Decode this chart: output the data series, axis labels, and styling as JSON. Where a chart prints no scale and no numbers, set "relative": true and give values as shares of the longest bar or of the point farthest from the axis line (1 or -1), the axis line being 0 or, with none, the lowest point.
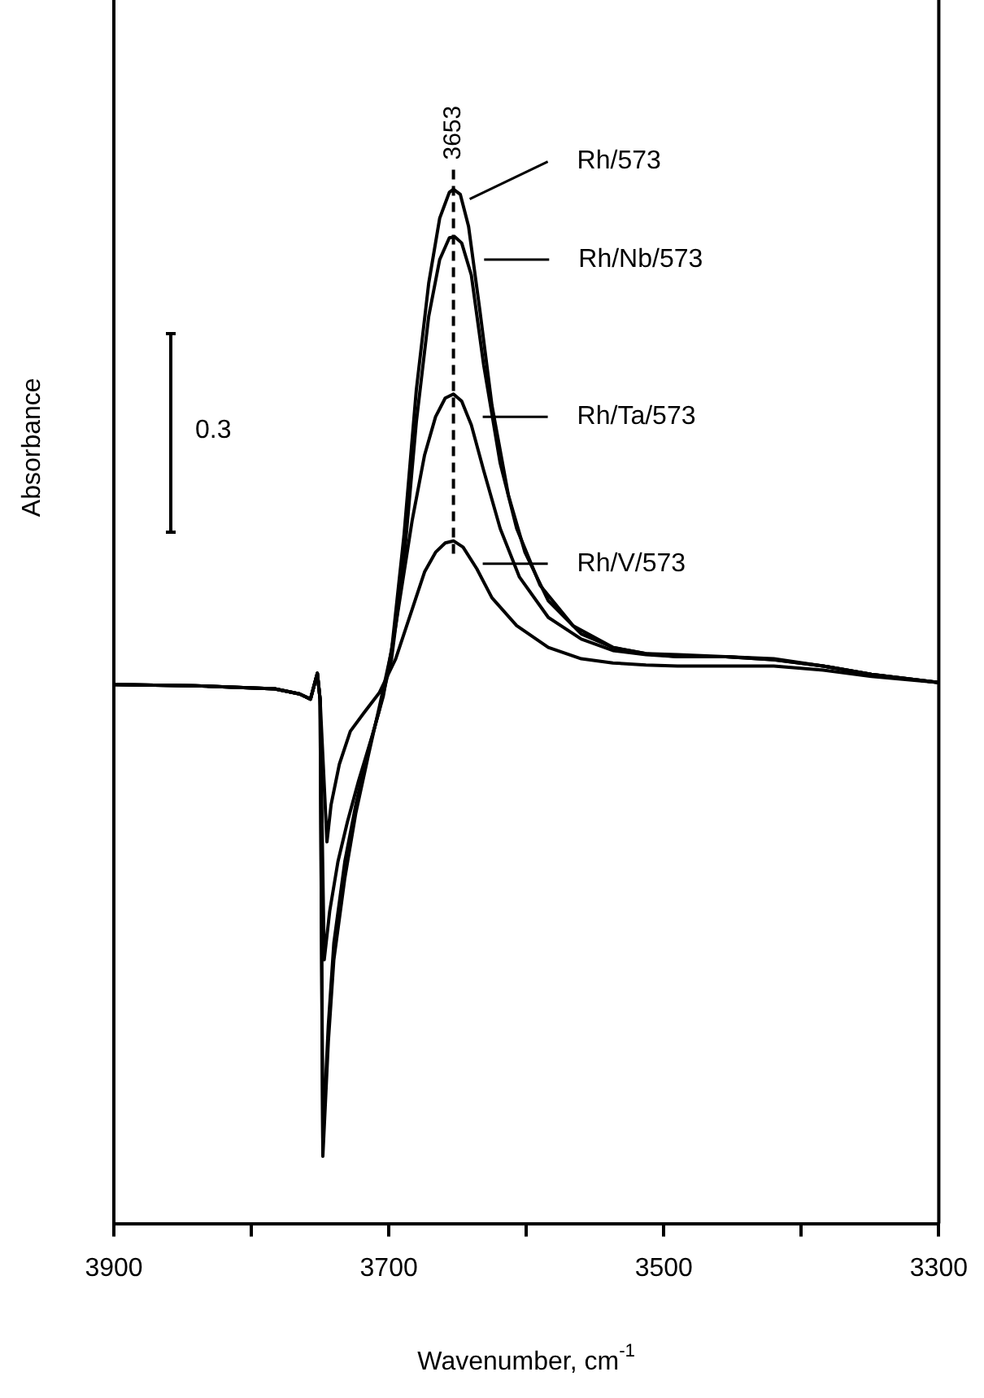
{
  "chart_data": {
    "type": "line",
    "relative": true,
    "xlabel": "Wavenumber, cm$^{-1}$",
    "ylabel": "Absorbance",
    "xlim": [
      3900,
      3300
    ],
    "xticks": [
      3900,
      {
        "value": 3800,
        "label": null
      },
      3700,
      {
        "value": 3600,
        "label": null
      },
      3500,
      {
        "value": 3400,
        "label": null
      },
      3300
    ],
    "tick_labels": "x",
    "grid": false,
    "legend": "right",
    "marker": "none",
    "line_style": "solid",
    "ref_lines": [
      {
        "axis": "x",
        "value": 3653,
        "label": "3653",
        "line_style": "dashed",
        "color": "#000000"
      }
    ],
    "annotations": [
      "0.3"
    ],
    "series": [
      {
        "name": "Rh/573",
        "color": "#000000",
        "x": [
          3900,
          3841,
          3783,
          3765,
          3757,
          3752,
          3750,
          3748,
          3744,
          3740,
          3732,
          3724,
          3715,
          3707,
          3698,
          3689,
          3680,
          3671,
          3663,
          3656,
          3653,
          3648,
          3642,
          3634,
          3625,
          3613,
          3601,
          3584,
          3560,
          3537,
          3513,
          3490,
          3455,
          3420,
          3384,
          3349,
          3300
        ],
        "values": [
          0.521,
          0.52,
          0.517,
          0.512,
          0.507,
          0.532,
          0.507,
          0.065,
          0.176,
          0.255,
          0.334,
          0.397,
          0.452,
          0.499,
          0.554,
          0.665,
          0.806,
          0.909,
          0.972,
          0.997,
          1.0,
          0.995,
          0.964,
          0.885,
          0.791,
          0.704,
          0.649,
          0.602,
          0.57,
          0.557,
          0.551,
          0.55,
          0.548,
          0.546,
          0.539,
          0.531,
          0.523
        ]
      },
      {
        "name": "Rh/Nb/573",
        "color": "#000000",
        "x": [
          3900,
          3841,
          3783,
          3765,
          3757,
          3752,
          3750,
          3748,
          3744,
          3740,
          3732,
          3724,
          3715,
          3707,
          3698,
          3689,
          3680,
          3671,
          3663,
          3656,
          3652,
          3647,
          3640,
          3631,
          3619,
          3607,
          3590,
          3566,
          3537,
          3513,
          3490,
          3455,
          3420,
          3384,
          3349,
          3300
        ],
        "values": [
          0.521,
          0.52,
          0.517,
          0.512,
          0.507,
          0.532,
          0.507,
          0.082,
          0.192,
          0.271,
          0.35,
          0.405,
          0.457,
          0.496,
          0.546,
          0.641,
          0.775,
          0.877,
          0.932,
          0.953,
          0.954,
          0.948,
          0.917,
          0.83,
          0.735,
          0.672,
          0.617,
          0.578,
          0.557,
          0.551,
          0.548,
          0.548,
          0.545,
          0.539,
          0.531,
          0.523
        ]
      },
      {
        "name": "Rh/Ta/573",
        "color": "#000000",
        "x": [
          3900,
          3841,
          3783,
          3765,
          3757,
          3752,
          3750,
          3747,
          3743,
          3737,
          3730,
          3722,
          3712,
          3704,
          3695,
          3683,
          3674,
          3666,
          3659,
          3653,
          3647,
          3640,
          3631,
          3619,
          3605,
          3584,
          3560,
          3537,
          3513,
          3490,
          3455,
          3420,
          3384,
          3349,
          3300
        ],
        "values": [
          0.521,
          0.52,
          0.517,
          0.512,
          0.507,
          0.532,
          0.507,
          0.255,
          0.302,
          0.35,
          0.389,
          0.428,
          0.472,
          0.51,
          0.578,
          0.68,
          0.743,
          0.78,
          0.798,
          0.802,
          0.795,
          0.772,
          0.728,
          0.672,
          0.625,
          0.586,
          0.565,
          0.554,
          0.55,
          0.548,
          0.548,
          0.545,
          0.539,
          0.531,
          0.523
        ]
      },
      {
        "name": "Rh/V/573",
        "color": "#000000",
        "x": [
          3900,
          3841,
          3783,
          3765,
          3757,
          3752,
          3750,
          3745,
          3742,
          3736,
          3728,
          3718,
          3707,
          3695,
          3683,
          3674,
          3666,
          3659,
          3653,
          3646,
          3636,
          3625,
          3607,
          3584,
          3560,
          3537,
          3513,
          3490,
          3455,
          3420,
          3384,
          3349,
          3300
        ],
        "values": [
          0.521,
          0.52,
          0.517,
          0.512,
          0.507,
          0.532,
          0.507,
          0.369,
          0.405,
          0.444,
          0.476,
          0.494,
          0.513,
          0.546,
          0.594,
          0.63,
          0.649,
          0.658,
          0.66,
          0.654,
          0.633,
          0.605,
          0.578,
          0.557,
          0.546,
          0.542,
          0.54,
          0.539,
          0.539,
          0.539,
          0.535,
          0.529,
          0.523
        ]
      }
    ]
  }
}
